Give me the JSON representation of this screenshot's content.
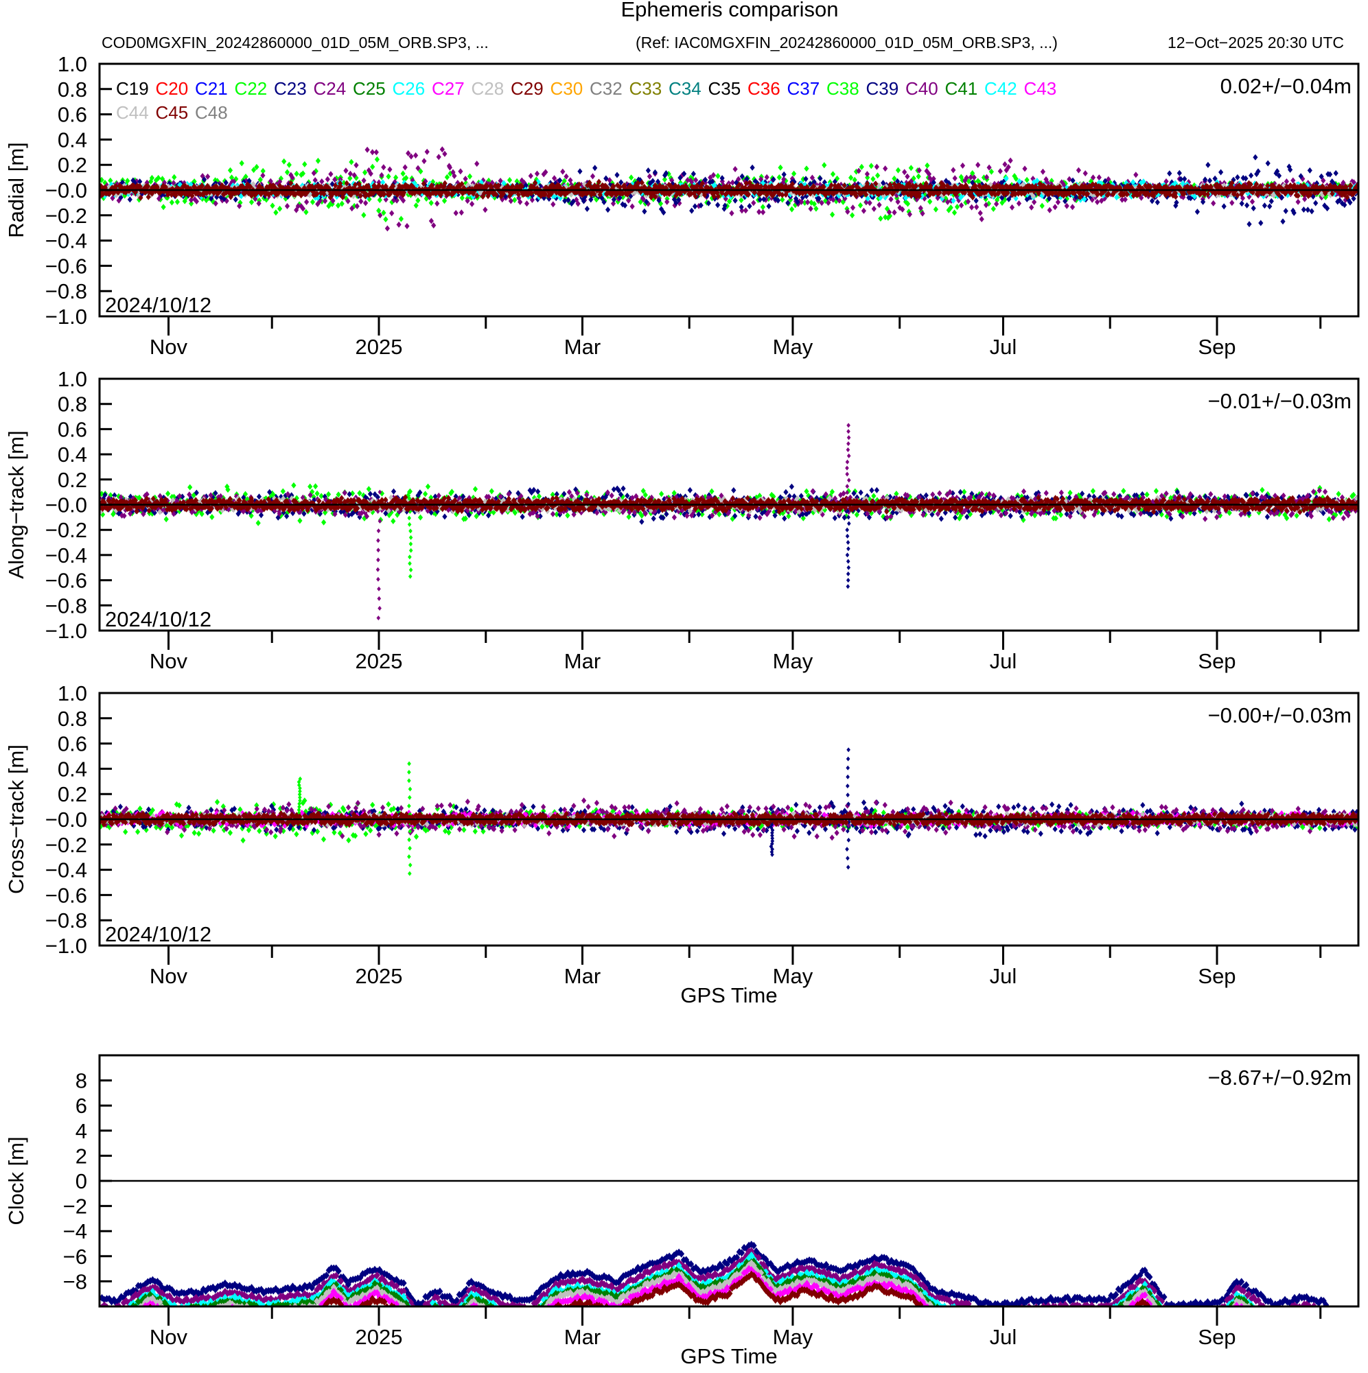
{
  "header": {
    "title": "Ephemeris comparison",
    "file_label": "COD0MGXFIN_20242860000_01D_05M_ORB.SP3, ...",
    "ref_label": "(Ref: IAC0MGXFIN_20242860000_01D_05M_ORB.SP3, ...)",
    "timestamp": "12−Oct−2025 20:30 UTC"
  },
  "chart_data": [
    {
      "type": "scatter",
      "title": "Radial",
      "ylabel": "Radial [m]",
      "xlabel": "",
      "ylim": [
        -1.0,
        1.0
      ],
      "yticks": [
        "1.0",
        "0.8",
        "0.6",
        "0.4",
        "0.2",
        "−0.0",
        "−0.2",
        "−0.4",
        "−0.6",
        "−0.8",
        "−1.0"
      ],
      "ytick_values": [
        1.0,
        0.8,
        0.6,
        0.4,
        0.2,
        0.0,
        -0.2,
        -0.4,
        -0.6,
        -0.8,
        -1.0
      ],
      "xlim": [
        "2024-10-12",
        "2025-10-12"
      ],
      "xtick_labels": [
        "Nov",
        "2025",
        "Mar",
        "May",
        "Jul",
        "Sep"
      ],
      "start_date_label": "2024/10/12",
      "stats_label": "0.02+/−0.04m",
      "grid": false,
      "legend_position": "top-left",
      "envelopes": [
        {
          "sat": "C22",
          "color": "#00ff00",
          "from": 0,
          "to": 370,
          "amp": [
            [
              0,
              0.1
            ],
            [
              40,
              0.25
            ],
            [
              80,
              0.3
            ],
            [
              110,
              0.1
            ],
            [
              180,
              0.15
            ],
            [
              220,
              0.3
            ],
            [
              260,
              0.2
            ],
            [
              300,
              0.05
            ],
            [
              365,
              0.08
            ]
          ]
        },
        {
          "sat": "C24",
          "color": "#800080",
          "from": 0,
          "to": 365,
          "amp": [
            [
              0,
              0.08
            ],
            [
              70,
              0.2
            ],
            [
              80,
              0.45
            ],
            [
              100,
              0.4
            ],
            [
              115,
              0.15
            ],
            [
              240,
              0.25
            ],
            [
              260,
              0.3
            ],
            [
              290,
              0.15
            ],
            [
              365,
              0.1
            ]
          ]
        },
        {
          "sat": "C23",
          "color": "#000080",
          "from": 0,
          "to": 365,
          "amp": [
            [
              0,
              0.1
            ],
            [
              120,
              0.05
            ],
            [
              145,
              0.2
            ],
            [
              175,
              0.25
            ],
            [
              220,
              0.08
            ],
            [
              300,
              0.1
            ],
            [
              335,
              0.35
            ],
            [
              365,
              0.15
            ]
          ]
        },
        {
          "sat": "C26",
          "color": "#00ffff",
          "from": 0,
          "to": 365,
          "amp": [
            [
              0,
              0.05
            ],
            [
              90,
              0.08
            ],
            [
              200,
              0.06
            ],
            [
              260,
              0.1
            ],
            [
              365,
              0.05
            ]
          ]
        },
        {
          "sat": "C28",
          "color": "#c0c0c0",
          "from": 0,
          "to": 365,
          "amp": [
            [
              0,
              0.05
            ],
            [
              365,
              0.05
            ]
          ]
        },
        {
          "sat": "C45",
          "color": "#800000",
          "from": 0,
          "to": 365,
          "amp": [
            [
              0,
              0.07
            ],
            [
              365,
              0.06
            ]
          ]
        }
      ],
      "spikes": []
    },
    {
      "type": "scatter",
      "title": "Along-track",
      "ylabel": "Along−track [m]",
      "xlabel": "",
      "ylim": [
        -1.0,
        1.0
      ],
      "yticks": [
        "1.0",
        "0.8",
        "0.6",
        "0.4",
        "0.2",
        "−0.0",
        "−0.2",
        "−0.4",
        "−0.6",
        "−0.8",
        "−1.0"
      ],
      "ytick_values": [
        1.0,
        0.8,
        0.6,
        0.4,
        0.2,
        0.0,
        -0.2,
        -0.4,
        -0.6,
        -0.8,
        -1.0
      ],
      "xlim": [
        "2024-10-12",
        "2025-10-12"
      ],
      "xtick_labels": [
        "Nov",
        "2025",
        "Mar",
        "May",
        "Jul",
        "Sep"
      ],
      "start_date_label": "2024/10/12",
      "stats_label": "−0.01+/−0.03m",
      "grid": false,
      "envelopes": [
        {
          "sat": "C22",
          "color": "#00ff00",
          "from": 0,
          "to": 365,
          "amp": [
            [
              0,
              0.12
            ],
            [
              80,
              0.2
            ],
            [
              120,
              0.12
            ],
            [
              365,
              0.14
            ]
          ]
        },
        {
          "sat": "C23",
          "color": "#000080",
          "from": 0,
          "to": 365,
          "amp": [
            [
              0,
              0.1
            ],
            [
              160,
              0.15
            ],
            [
              200,
              0.15
            ],
            [
              365,
              0.1
            ]
          ]
        },
        {
          "sat": "C24",
          "color": "#800080",
          "from": 0,
          "to": 365,
          "amp": [
            [
              0,
              0.1
            ],
            [
              280,
              0.12
            ],
            [
              365,
              0.12
            ]
          ]
        },
        {
          "sat": "C28",
          "color": "#c0c0c0",
          "from": 0,
          "to": 365,
          "amp": [
            [
              0,
              0.06
            ],
            [
              365,
              0.06
            ]
          ]
        },
        {
          "sat": "C45",
          "color": "#800000",
          "from": 0,
          "to": 365,
          "amp": [
            [
              0,
              0.06
            ],
            [
              365,
              0.06
            ]
          ]
        }
      ],
      "spikes": [
        {
          "sat": "C24",
          "color": "#800080",
          "day": 81,
          "min": -0.9,
          "max": 0.1
        },
        {
          "sat": "C22",
          "color": "#00ff00",
          "day": 90,
          "min": -0.57,
          "max": 0.1
        },
        {
          "sat": "C24",
          "color": "#800080",
          "day": 217,
          "min": 0.0,
          "max": 0.63
        },
        {
          "sat": "C23",
          "color": "#000080",
          "day": 217,
          "min": -0.65,
          "max": 0.0
        }
      ]
    },
    {
      "type": "scatter",
      "title": "Cross-track",
      "ylabel": "Cross−track [m]",
      "xlabel": "GPS Time",
      "ylim": [
        -1.0,
        1.0
      ],
      "yticks": [
        "1.0",
        "0.8",
        "0.6",
        "0.4",
        "0.2",
        "−0.0",
        "−0.2",
        "−0.4",
        "−0.6",
        "−0.8",
        "−1.0"
      ],
      "ytick_values": [
        1.0,
        0.8,
        0.6,
        0.4,
        0.2,
        0.0,
        -0.2,
        -0.4,
        -0.6,
        -0.8,
        -1.0
      ],
      "xlim": [
        "2024-10-12",
        "2025-10-12"
      ],
      "xtick_labels": [
        "Nov",
        "2025",
        "Mar",
        "May",
        "Jul",
        "Sep"
      ],
      "start_date_label": "2024/10/12",
      "stats_label": "−0.00+/−0.03m",
      "grid": false,
      "envelopes": [
        {
          "sat": "C22",
          "color": "#00ff00",
          "from": 0,
          "to": 365,
          "amp": [
            [
              0,
              0.12
            ],
            [
              60,
              0.2
            ],
            [
              90,
              0.15
            ],
            [
              130,
              0.08
            ],
            [
              365,
              0.08
            ]
          ]
        },
        {
          "sat": "C23",
          "color": "#000080",
          "from": 0,
          "to": 365,
          "amp": [
            [
              0,
              0.1
            ],
            [
              150,
              0.12
            ],
            [
              220,
              0.15
            ],
            [
              365,
              0.12
            ]
          ]
        },
        {
          "sat": "C24",
          "color": "#800080",
          "from": 0,
          "to": 365,
          "amp": [
            [
              0,
              0.1
            ],
            [
              80,
              0.15
            ],
            [
              240,
              0.15
            ],
            [
              290,
              0.12
            ],
            [
              365,
              0.1
            ]
          ]
        },
        {
          "sat": "C27",
          "color": "#ff00ff",
          "from": 0,
          "to": 365,
          "amp": [
            [
              0,
              0.06
            ],
            [
              365,
              0.06
            ]
          ]
        },
        {
          "sat": "C28",
          "color": "#c0c0c0",
          "from": 0,
          "to": 365,
          "amp": [
            [
              0,
              0.05
            ],
            [
              365,
              0.05
            ]
          ]
        },
        {
          "sat": "C45",
          "color": "#800000",
          "from": 0,
          "to": 365,
          "amp": [
            [
              0,
              0.05
            ],
            [
              365,
              0.05
            ]
          ]
        }
      ],
      "spikes": [
        {
          "sat": "C22",
          "color": "#00ff00",
          "day": 58,
          "min": 0.0,
          "max": 0.32
        },
        {
          "sat": "C22",
          "color": "#00ff00",
          "day": 90,
          "min": -0.43,
          "max": 0.44
        },
        {
          "sat": "C23",
          "color": "#000080",
          "day": 217,
          "min": -0.38,
          "max": 0.55
        },
        {
          "sat": "C23",
          "color": "#000080",
          "day": 195,
          "min": -0.28,
          "max": 0.0
        }
      ]
    },
    {
      "type": "scatter",
      "title": "Clock",
      "ylabel": "Clock [m]",
      "xlabel": "GPS Time",
      "ylim": [
        -10,
        10
      ],
      "yticks": [
        "8",
        "6",
        "4",
        "2",
        "0",
        "−2",
        "−4",
        "−6",
        "−8"
      ],
      "ytick_values": [
        8,
        6,
        4,
        2,
        0,
        -2,
        -4,
        -6,
        -8
      ],
      "xlim": [
        "2024-10-12",
        "2025-10-12"
      ],
      "xtick_labels": [
        "Nov",
        "2025",
        "Mar",
        "May",
        "Jul",
        "Sep"
      ],
      "stats_label": "−8.67+/−0.92m",
      "grid": false,
      "curve_offsets": [
        {
          "sat": "C23",
          "color": "#000080",
          "offset": 0.0
        },
        {
          "sat": "C24",
          "color": "#800080",
          "offset": -0.6
        },
        {
          "sat": "C26",
          "color": "#00ffff",
          "offset": -1.1
        },
        {
          "sat": "C25",
          "color": "#008000",
          "offset": -1.3
        },
        {
          "sat": "C28",
          "color": "#c0c0c0",
          "offset": -1.6
        },
        {
          "sat": "C27",
          "color": "#ff00ff",
          "offset": -2.0
        },
        {
          "sat": "C45",
          "color": "#800000",
          "offset": -2.4
        }
      ],
      "base_curve": [
        [
          0,
          -9.3
        ],
        [
          5,
          -9.6
        ],
        [
          12,
          -8.3
        ],
        [
          15,
          -7.8
        ],
        [
          22,
          -9.0
        ],
        [
          30,
          -8.8
        ],
        [
          38,
          -8.2
        ],
        [
          48,
          -8.9
        ],
        [
          55,
          -8.6
        ],
        [
          62,
          -8.4
        ],
        [
          68,
          -6.9
        ],
        [
          72,
          -8.2
        ],
        [
          80,
          -7.0
        ],
        [
          88,
          -8.2
        ],
        [
          92,
          -10.0
        ],
        [
          97,
          -8.7
        ],
        [
          103,
          -9.6
        ],
        [
          108,
          -8.0
        ],
        [
          118,
          -9.3
        ],
        [
          125,
          -9.5
        ],
        [
          132,
          -7.7
        ],
        [
          140,
          -7.3
        ],
        [
          150,
          -8.0
        ],
        [
          158,
          -6.8
        ],
        [
          168,
          -5.8
        ],
        [
          174,
          -7.3
        ],
        [
          182,
          -6.6
        ],
        [
          189,
          -5.0
        ],
        [
          196,
          -7.2
        ],
        [
          205,
          -6.3
        ],
        [
          215,
          -7.2
        ],
        [
          225,
          -6.1
        ],
        [
          235,
          -6.8
        ],
        [
          242,
          -8.7
        ],
        [
          250,
          -9.2
        ],
        [
          260,
          -10.0
        ],
        [
          268,
          -9.6
        ],
        [
          280,
          -9.4
        ],
        [
          292,
          -9.5
        ],
        [
          303,
          -7.2
        ],
        [
          310,
          -9.9
        ],
        [
          325,
          -9.7
        ],
        [
          330,
          -8.0
        ],
        [
          340,
          -9.8
        ],
        [
          350,
          -9.3
        ],
        [
          356,
          -9.8
        ]
      ]
    }
  ],
  "legend": {
    "row1": [
      {
        "label": "C19",
        "color": "#000000"
      },
      {
        "label": "C20",
        "color": "#ff0000"
      },
      {
        "label": "C21",
        "color": "#0000ff"
      },
      {
        "label": "C22",
        "color": "#00ff00"
      },
      {
        "label": "C23",
        "color": "#000080"
      },
      {
        "label": "C24",
        "color": "#800080"
      },
      {
        "label": "C25",
        "color": "#008000"
      },
      {
        "label": "C26",
        "color": "#00ffff"
      },
      {
        "label": "C27",
        "color": "#ff00ff"
      },
      {
        "label": "C28",
        "color": "#c0c0c0"
      },
      {
        "label": "C29",
        "color": "#800000"
      },
      {
        "label": "C30",
        "color": "#ffa500"
      },
      {
        "label": "C32",
        "color": "#808080"
      },
      {
        "label": "C33",
        "color": "#808000"
      },
      {
        "label": "C34",
        "color": "#008080"
      },
      {
        "label": "C35",
        "color": "#000000"
      },
      {
        "label": "C36",
        "color": "#ff0000"
      },
      {
        "label": "C37",
        "color": "#0000ff"
      },
      {
        "label": "C38",
        "color": "#00ff00"
      },
      {
        "label": "C39",
        "color": "#000080"
      },
      {
        "label": "C40",
        "color": "#800080"
      },
      {
        "label": "C41",
        "color": "#008000"
      },
      {
        "label": "C42",
        "color": "#00ffff"
      },
      {
        "label": "C43",
        "color": "#ff00ff"
      }
    ],
    "row2": [
      {
        "label": "C44",
        "color": "#c0c0c0"
      },
      {
        "label": "C45",
        "color": "#800000"
      },
      {
        "label": "C48",
        "color": "#808080"
      }
    ]
  }
}
